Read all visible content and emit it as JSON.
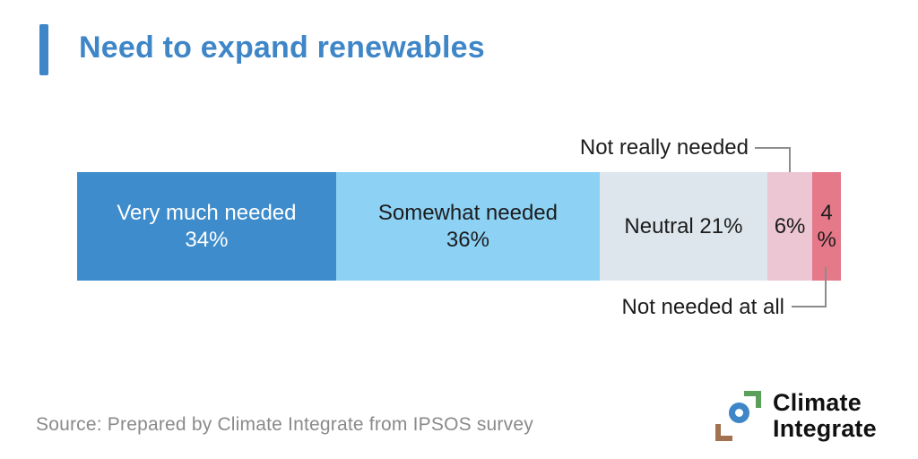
{
  "header": {
    "title": "Need to expand renewables",
    "accent_color": "#3e86c7"
  },
  "chart_data": {
    "type": "bar",
    "subtype": "horizontal-stacked-100pct",
    "title": "Need to expand renewables",
    "question": "Need to expand renewables",
    "categories": [
      "Very much needed",
      "Somewhat needed",
      "Neutral",
      "Not really needed",
      "Not needed at all"
    ],
    "values": [
      34,
      36,
      21,
      6,
      4
    ],
    "unit": "%",
    "colors": [
      "#3e8ccb",
      "#8dd2f5",
      "#dde6ec",
      "#ecc6d2",
      "#e5798a"
    ],
    "legend_position": "none",
    "grid": false,
    "callout_labels": [
      {
        "text": "Not really needed",
        "target_category": "Not really needed",
        "position": "above-bar"
      },
      {
        "text": "Not needed at all",
        "target_category": "Not needed at all",
        "position": "below-bar"
      }
    ]
  },
  "segments": [
    {
      "line1": "Very much needed",
      "line2": "34%",
      "value": 34,
      "color": "#3e8ccb",
      "text_color": "#ffffff"
    },
    {
      "line1": "Somewhat needed",
      "line2": "36%",
      "value": 36,
      "color": "#8dd2f5",
      "text_color": "#1c1c1c"
    },
    {
      "line1": "Neutral 21%",
      "line2": "",
      "value": 21,
      "color": "#dde6ec",
      "text_color": "#1c1c1c"
    },
    {
      "line1": "6%",
      "line2": "",
      "value": 6,
      "color": "#ecc6d2",
      "text_color": "#1c1c1c"
    },
    {
      "line1": "4",
      "line2": "%",
      "value": 4,
      "color": "#e5798a",
      "text_color": "#1c1c1c"
    }
  ],
  "callouts": {
    "top": "Not really needed",
    "bottom": "Not needed at all"
  },
  "footer": {
    "source": "Source: Prepared by Climate Integrate from IPSOS survey",
    "logo_line1": "Climate",
    "logo_line2": "Integrate",
    "logo_icon": "climate-integrate-ring-brackets-icon"
  }
}
